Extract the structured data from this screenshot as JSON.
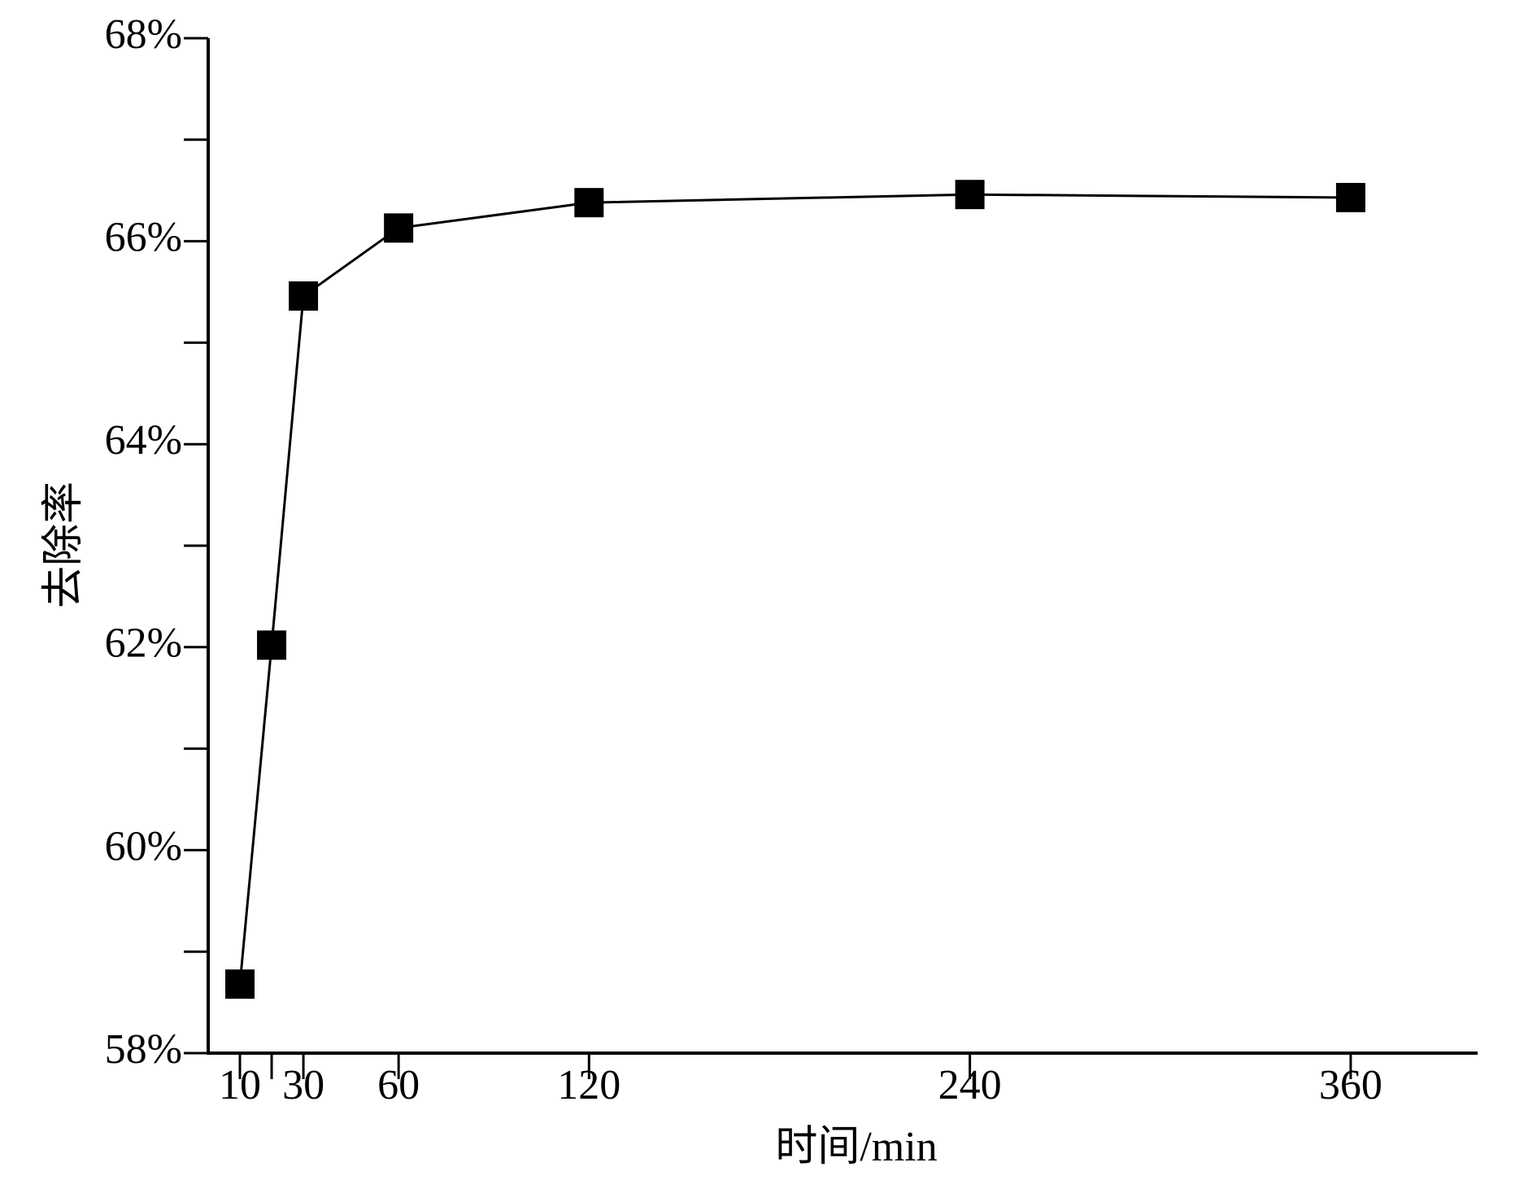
{
  "chart_data": {
    "type": "line",
    "x_label": "时间/min",
    "y_label": "去除率",
    "x": [
      10,
      20,
      30,
      60,
      120,
      240,
      360
    ],
    "series": [
      {
        "color": "#000000",
        "marker": "square",
        "values": [
          58.68,
          62.02,
          65.46,
          66.13,
          66.38,
          66.46,
          66.43
        ]
      }
    ],
    "xlim": [
      0,
      400
    ],
    "xticks": [
      10,
      30,
      60,
      120,
      240,
      360
    ],
    "xminorticks": [
      20
    ],
    "ylim": [
      58,
      68
    ],
    "yticks": [
      {
        "value": 58,
        "label": "58%"
      },
      {
        "value": 60,
        "label": "60%"
      },
      {
        "value": 62,
        "label": "62%"
      },
      {
        "value": 64,
        "label": "64%"
      },
      {
        "value": 66,
        "label": "66%"
      },
      {
        "value": 68,
        "label": "68%"
      }
    ],
    "yminorticks": [
      59,
      61,
      63,
      65,
      67
    ],
    "grid": false
  }
}
